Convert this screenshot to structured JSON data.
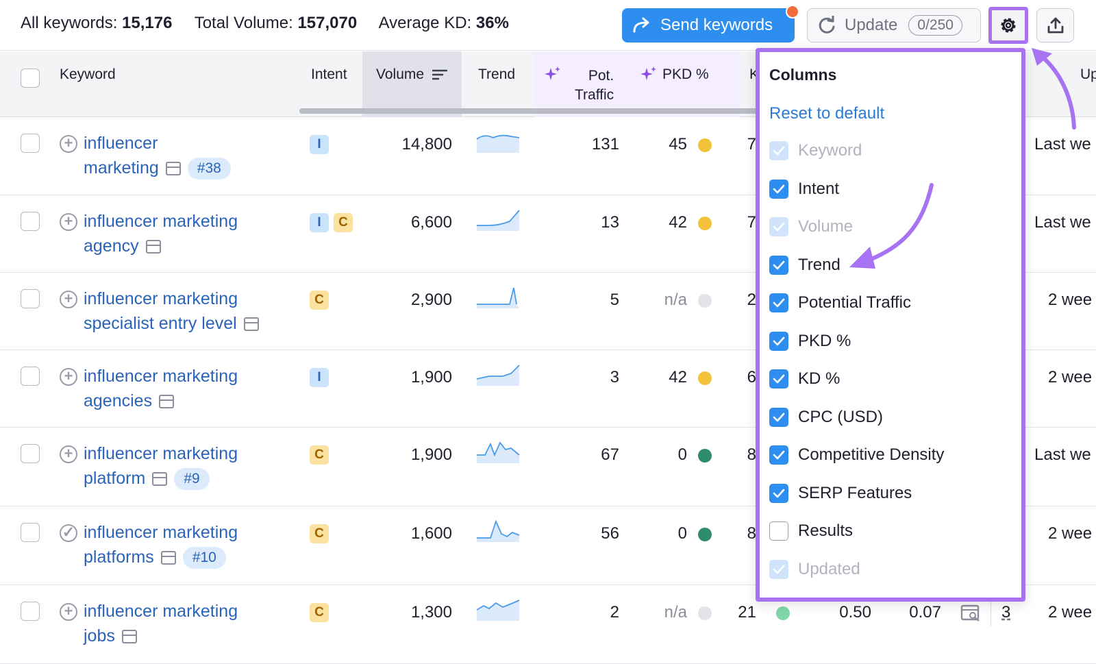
{
  "summary": {
    "all_keywords_label": "All keywords:",
    "all_keywords_value": "15,176",
    "total_volume_label": "Total Volume:",
    "total_volume_value": "157,070",
    "avg_kd_label": "Average KD:",
    "avg_kd_value": "36%"
  },
  "toolbar": {
    "send_label": "Send keywords",
    "update_label": "Update",
    "update_counter": "0/250"
  },
  "table": {
    "headers": {
      "keyword": "Keyword",
      "intent": "Intent",
      "volume": "Volume",
      "trend": "Trend",
      "pot_traffic_1": "Pot.",
      "pot_traffic_2": "Traffic",
      "pkd": "PKD %",
      "kd_partial": "K",
      "updated_partial": "Up"
    },
    "rows": [
      {
        "kw1": "influencer",
        "kw2": "marketing",
        "pos": "#38",
        "intents": [
          "I"
        ],
        "volume": "14,800",
        "pot": "131",
        "pkd": "45",
        "pkd_color": "#f3c13a",
        "kd": "7",
        "updated": "Last we"
      },
      {
        "kw1": "influencer marketing",
        "kw2": "agency",
        "pos": "",
        "intents": [
          "I",
          "C"
        ],
        "volume": "6,600",
        "pot": "13",
        "pkd": "42",
        "pkd_color": "#f3c13a",
        "kd": "7",
        "updated": "Last we"
      },
      {
        "kw1": "influencer marketing",
        "kw2": "specialist entry level",
        "pos": "",
        "intents": [
          "C"
        ],
        "volume": "2,900",
        "pot": "5",
        "pkd": "n/a",
        "pkd_color": "#e3e4ea",
        "kd": "2",
        "updated": "2 wee"
      },
      {
        "kw1": "influencer marketing",
        "kw2": "agencies",
        "pos": "",
        "intents": [
          "I"
        ],
        "volume": "1,900",
        "pot": "3",
        "pkd": "42",
        "pkd_color": "#f3c13a",
        "kd": "6",
        "updated": "2 wee"
      },
      {
        "kw1": "influencer marketing",
        "kw2": "platform",
        "pos": "#9",
        "intents": [
          "C"
        ],
        "volume": "1,900",
        "pot": "67",
        "pkd": "0",
        "pkd_color": "#2e8b6e",
        "kd": "8",
        "updated": "Last we"
      },
      {
        "kw1": "influencer marketing",
        "kw2": "platforms",
        "pos": "#10",
        "intents": [
          "C"
        ],
        "volume": "1,600",
        "pot": "56",
        "pkd": "0",
        "pkd_color": "#2e8b6e",
        "kd": "8",
        "updated": "2 wee"
      },
      {
        "kw1": "influencer marketing",
        "kw2": "jobs",
        "pos": "",
        "intents": [
          "C"
        ],
        "volume": "1,300",
        "pot": "2",
        "pkd": "n/a",
        "pkd_color": "#e3e4ea",
        "kd": "21",
        "kd_color": "#7fd6a8",
        "cpc": "0.50",
        "com": "0.07",
        "results": "3",
        "updated": "2 wee"
      }
    ]
  },
  "columns_menu": {
    "title": "Columns",
    "reset": "Reset to default",
    "items": [
      {
        "label": "Keyword",
        "state": "disabled"
      },
      {
        "label": "Intent",
        "state": "on"
      },
      {
        "label": "Volume",
        "state": "disabled"
      },
      {
        "label": "Trend",
        "state": "on"
      },
      {
        "label": "Potential Traffic",
        "state": "on"
      },
      {
        "label": "PKD %",
        "state": "on"
      },
      {
        "label": "KD %",
        "state": "on"
      },
      {
        "label": "CPC (USD)",
        "state": "on"
      },
      {
        "label": "Competitive Density",
        "state": "on"
      },
      {
        "label": "SERP Features",
        "state": "on"
      },
      {
        "label": "Results",
        "state": "off"
      },
      {
        "label": "Updated",
        "state": "disabled"
      }
    ]
  },
  "colors": {
    "accent": "#a773f2",
    "primary": "#2d8ef0",
    "link": "#2a63b8"
  }
}
